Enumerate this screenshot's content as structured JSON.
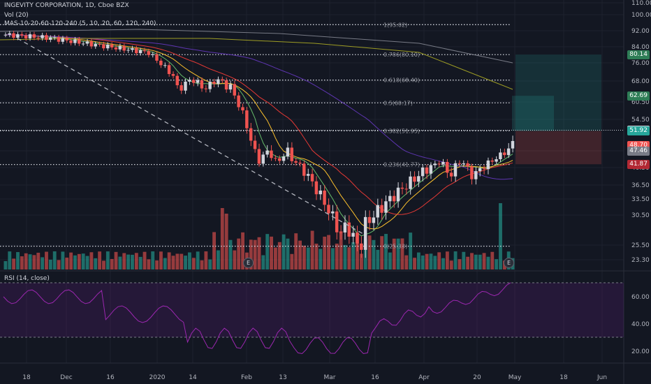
{
  "header": {
    "symbol_title": "INGEVITY CORPORATION, 1D, Cboe BZX",
    "vol_label": "Vol (20)",
    "ma_label": "MAS-10-20-60-120-240 (5, 10, 20, 60, 120, 240)",
    "rsi_label": "RSI (14, close)"
  },
  "price_axis": [
    "110.00",
    "100.00",
    "92.00",
    "84.00",
    "76.00",
    "68.00",
    "60.50",
    "54.50",
    "47.46",
    "40.50",
    "36.50",
    "33.50",
    "30.50",
    "25.50",
    "23.30"
  ],
  "rsi_axis": [
    "60.00",
    "40.00",
    "20.00"
  ],
  "time_axis": [
    "18",
    "Dec",
    "16",
    "2020",
    "14",
    "Feb",
    "13",
    "Mar",
    "16",
    "Apr",
    "20",
    "May",
    "18",
    "Jun"
  ],
  "fib_levels": [
    {
      "label": "1(95.02)",
      "value": 95.02
    },
    {
      "label": "0.786(80.10)",
      "value": 80.1
    },
    {
      "label": "0.618(68.40)",
      "value": 68.4
    },
    {
      "label": "0.5(60.17)",
      "value": 60.17
    },
    {
      "label": "0.382(51.95)",
      "value": 51.95
    },
    {
      "label": "0.236(41.77)",
      "value": 41.77
    },
    {
      "label": "0(25.33)",
      "value": 25.33
    }
  ],
  "price_tags": [
    {
      "text": "80.14",
      "color": "#2e7d56",
      "value": 80.14
    },
    {
      "text": "62.69",
      "color": "#2e7d56",
      "value": 62.69
    },
    {
      "text": "52.08",
      "color": "#d1d4dc",
      "value": 52.08
    },
    {
      "text": "51.92",
      "color": "#26a69a",
      "value": 51.92
    },
    {
      "text": "48.70",
      "color": "#ef5350",
      "value": 48.7
    },
    {
      "text": "47.46",
      "color": "#787b86",
      "value": 47.46
    },
    {
      "text": "41.87",
      "color": "#b22833",
      "value": 41.87
    }
  ],
  "earnings_marker": "E",
  "colors": {
    "up": "#26a69a",
    "down": "#ef5350",
    "bg": "#131722",
    "rsi": "#9c27b0"
  }
}
